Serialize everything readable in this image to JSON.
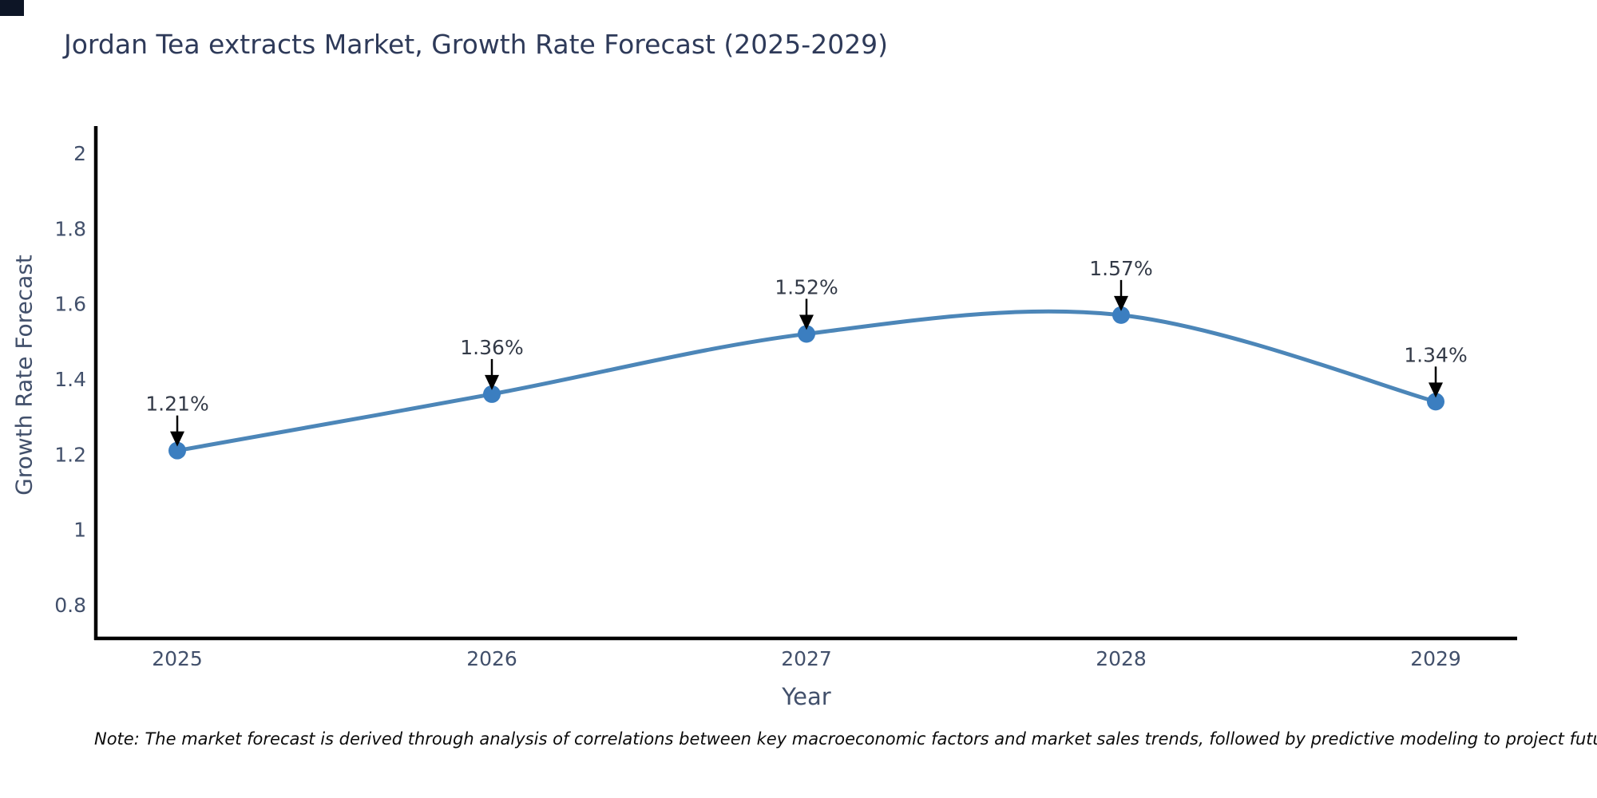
{
  "page": {
    "background": "#ffffff",
    "corner_mark_color": "#0d1526"
  },
  "chart_data": {
    "type": "line",
    "title": "Jordan Tea extracts Market, Growth Rate Forecast (2025-2029)",
    "xlabel": "Year",
    "ylabel": "Growth Rate Forecast",
    "categories": [
      "2025",
      "2026",
      "2027",
      "2028",
      "2029"
    ],
    "series": [
      {
        "name": "Growth Rate Forecast",
        "values": [
          1.21,
          1.36,
          1.52,
          1.57,
          1.34
        ],
        "point_labels": [
          "1.21%",
          "1.36%",
          "1.52%",
          "1.57%",
          "1.34%"
        ]
      }
    ],
    "yticks": [
      0.8,
      1,
      1.2,
      1.4,
      1.6,
      1.8,
      2
    ],
    "ytick_labels": [
      "0.8",
      "1",
      "1.2",
      "1.4",
      "1.6",
      "1.8",
      "2"
    ],
    "ylim": [
      0.711,
      2.068
    ],
    "grid": false,
    "legend": "none",
    "line_smoothing": "spline",
    "colors": {
      "line": "#4c86b8",
      "marker": "#3b7ec0",
      "axis": "#000000",
      "annotation_arrow": "#000000",
      "title_text": "#2e3a59",
      "tick_text": "#42506b",
      "annotation_text": "#333a47"
    }
  },
  "note": {
    "text": "Note: The market forecast is derived through analysis of correlations between key macroeconomic factors and market sales trends, followed by predictive modeling to project future sales"
  }
}
